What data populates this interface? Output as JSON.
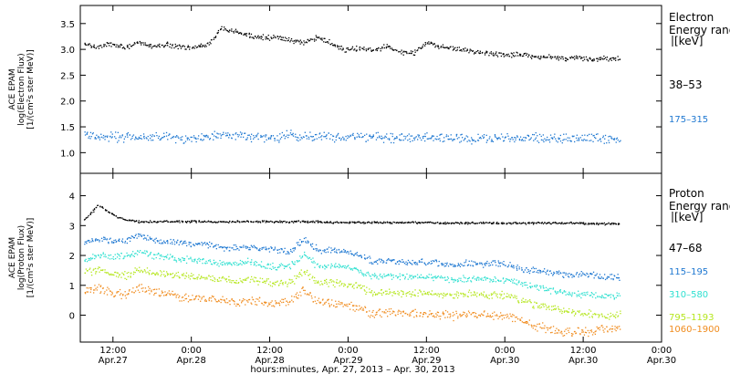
{
  "chart_data": [
    {
      "type": "scatter",
      "ylabel_lines": [
        "ACE EPAM",
        "log(Electron Flux)",
        "[1/(cm²s ster MeV)]"
      ],
      "ylim": [
        0.6,
        3.85
      ],
      "yticks": [
        "1.0",
        "1.5",
        "2.0",
        "2.5",
        "3.0",
        "3.5"
      ],
      "legend_title_lines": [
        "Electron",
        "Energy ranges",
        "[keV]"
      ],
      "series": [
        {
          "name": "38–53",
          "color": "#000000",
          "jitter": 0.035,
          "values": [
            3.1,
            3.06,
            3.12,
            3.06,
            3.12,
            3.07,
            3.1,
            3.06,
            3.05,
            3.1,
            3.42,
            3.35,
            3.27,
            3.25,
            3.23,
            3.18,
            3.15,
            3.25,
            3.12,
            3.0,
            3.03,
            2.98,
            3.07,
            2.95,
            2.95,
            3.12,
            3.05,
            3.03,
            2.98,
            2.95,
            2.92,
            2.9,
            2.92,
            2.85,
            2.87,
            2.83,
            2.85,
            2.82,
            2.83,
            2.85
          ]
        },
        {
          "name": "175–315",
          "color": "#1f78d1",
          "jitter": 0.07,
          "values": [
            1.35,
            1.3,
            1.32,
            1.3,
            1.3,
            1.3,
            1.32,
            1.28,
            1.3,
            1.32,
            1.38,
            1.35,
            1.33,
            1.3,
            1.3,
            1.35,
            1.3,
            1.32,
            1.32,
            1.3,
            1.32,
            1.32,
            1.3,
            1.3,
            1.3,
            1.32,
            1.3,
            1.3,
            1.28,
            1.3,
            1.3,
            1.28,
            1.3,
            1.3,
            1.28,
            1.3,
            1.28,
            1.3,
            1.28,
            1.3
          ]
        }
      ]
    },
    {
      "type": "scatter",
      "ylabel_lines": [
        "ACE EPAM",
        "log(Proton Flux)",
        "[1/(cm²s ster MeV)]"
      ],
      "ylim": [
        -0.9,
        4.75
      ],
      "yticks": [
        "0",
        "1",
        "2",
        "3",
        "4"
      ],
      "legend_title_lines": [
        "Proton",
        "Energy ranges",
        "[keV]"
      ],
      "series": [
        {
          "name": "47–68",
          "color": "#000000",
          "jitter": 0.025,
          "values": [
            3.2,
            3.7,
            3.4,
            3.2,
            3.15,
            3.15,
            3.15,
            3.15,
            3.15,
            3.15,
            3.15,
            3.15,
            3.15,
            3.15,
            3.15,
            3.15,
            3.15,
            3.15,
            3.12,
            3.12,
            3.12,
            3.12,
            3.12,
            3.12,
            3.12,
            3.12,
            3.1,
            3.1,
            3.1,
            3.1,
            3.1,
            3.1,
            3.1,
            3.1,
            3.1,
            3.1,
            3.1,
            3.08,
            3.08,
            3.08
          ]
        },
        {
          "name": "115–195",
          "color": "#1f78d1",
          "jitter": 0.08,
          "values": [
            2.5,
            2.55,
            2.5,
            2.5,
            2.7,
            2.55,
            2.45,
            2.45,
            2.4,
            2.38,
            2.3,
            2.25,
            2.3,
            2.25,
            2.2,
            2.15,
            2.55,
            2.2,
            2.2,
            2.15,
            2.05,
            1.8,
            1.85,
            1.8,
            1.8,
            1.78,
            1.75,
            1.7,
            1.75,
            1.72,
            1.75,
            1.7,
            1.55,
            1.5,
            1.45,
            1.4,
            1.38,
            1.35,
            1.3,
            1.3
          ]
        },
        {
          "name": "310–580",
          "color": "#2fe0d0",
          "jitter": 0.08,
          "values": [
            1.85,
            2.05,
            2.0,
            2.0,
            2.15,
            2.0,
            1.95,
            1.9,
            1.85,
            1.8,
            1.75,
            1.75,
            1.8,
            1.7,
            1.65,
            1.65,
            2.05,
            1.65,
            1.65,
            1.6,
            1.5,
            1.3,
            1.35,
            1.3,
            1.3,
            1.3,
            1.25,
            1.2,
            1.25,
            1.25,
            1.2,
            1.2,
            1.05,
            0.95,
            0.85,
            0.75,
            0.7,
            0.7,
            0.65,
            0.65
          ]
        },
        {
          "name": "795–1193",
          "color": "#b5e61d",
          "jitter": 0.09,
          "values": [
            1.45,
            1.5,
            1.4,
            1.35,
            1.55,
            1.45,
            1.4,
            1.35,
            1.3,
            1.25,
            1.2,
            1.15,
            1.2,
            1.15,
            1.1,
            1.1,
            1.5,
            1.1,
            1.1,
            1.05,
            0.95,
            0.75,
            0.8,
            0.75,
            0.75,
            0.75,
            0.7,
            0.7,
            0.75,
            0.7,
            0.7,
            0.65,
            0.5,
            0.35,
            0.25,
            0.15,
            0.1,
            0.05,
            0.0,
            0.05
          ]
        },
        {
          "name": "1060–1900",
          "color": "#f08c1e",
          "jitter": 0.11,
          "values": [
            0.8,
            0.9,
            0.75,
            0.7,
            0.95,
            0.8,
            0.7,
            0.65,
            0.6,
            0.55,
            0.5,
            0.45,
            0.5,
            0.45,
            0.4,
            0.45,
            0.9,
            0.45,
            0.4,
            0.35,
            0.25,
            0.05,
            0.1,
            0.1,
            0.1,
            0.05,
            0.0,
            0.0,
            0.05,
            0.0,
            0.0,
            -0.05,
            -0.2,
            -0.35,
            -0.5,
            -0.55,
            -0.55,
            -0.5,
            -0.45,
            -0.4
          ]
        }
      ]
    }
  ],
  "x_axis": {
    "xlim_hours": [
      0,
      89
    ],
    "tick_hours": [
      5,
      17,
      29,
      41,
      53,
      65,
      77,
      89
    ],
    "tick_times": [
      "12:00",
      "0:00",
      "12:00",
      "0:00",
      "12:00",
      "0:00",
      "12:00",
      "0:00"
    ],
    "tick_dates": [
      "Apr.27",
      "Apr.28",
      "Apr.28",
      "Apr.29",
      "Apr.29",
      "Apr.30",
      "Apr.30",
      "Apr.30"
    ],
    "visible_ticks": [
      0,
      1,
      2,
      3,
      4,
      5,
      6
    ],
    "data_end_hour": 82.5,
    "xlabel": "hours:minutes, Apr. 27, 2013 – Apr. 30, 2013"
  }
}
